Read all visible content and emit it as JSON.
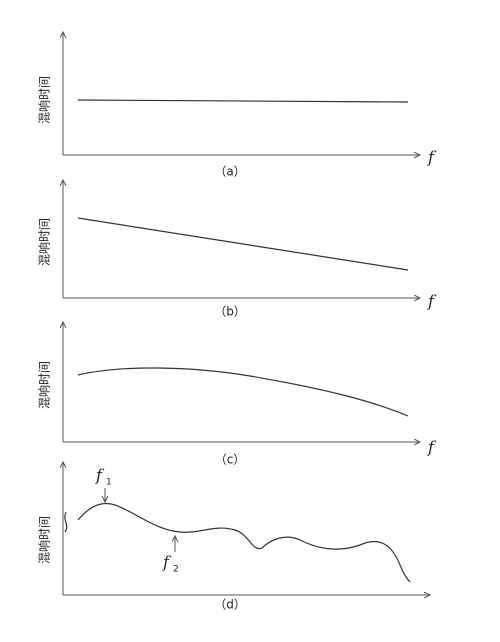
{
  "panels": [
    {
      "y_label": "混响时间",
      "x_label": "f",
      "caption": "（a）"
    },
    {
      "y_label": "混响时间",
      "x_label": "f",
      "caption": "（b）"
    },
    {
      "y_label": "混响时间",
      "x_label": "f",
      "caption": "（c）"
    },
    {
      "y_label": "混响时间",
      "caption": "（d）"
    }
  ],
  "markers": [
    {
      "label": "f",
      "sub": "1"
    },
    {
      "label": "f",
      "sub": "2"
    }
  ]
}
